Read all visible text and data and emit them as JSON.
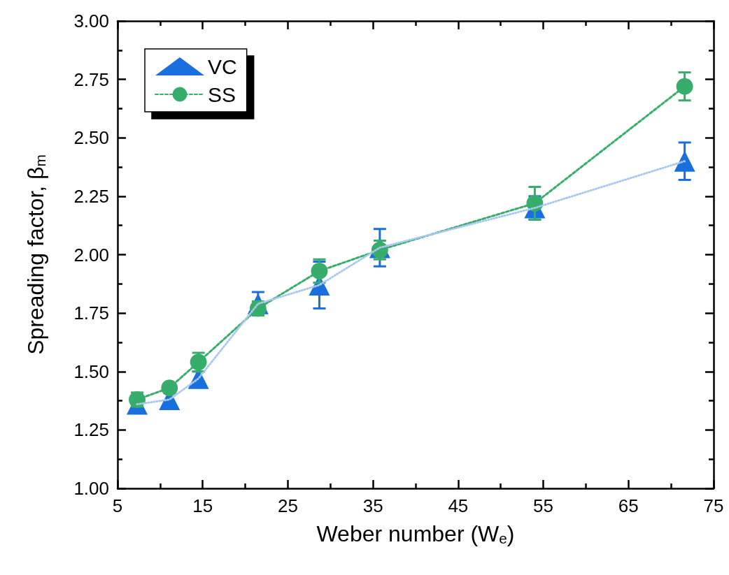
{
  "chart_data": {
    "type": "line",
    "xlabel": "Weber number (W$_{e}$)",
    "ylabel": "Spreading factor, β$_{m}$",
    "x": [
      7.3,
      11.1,
      14.5,
      21.5,
      28.7,
      35.8,
      54.0,
      71.6
    ],
    "series": [
      {
        "name": "VC",
        "color": "#1a6fdf",
        "marker": "triangle",
        "line_style": "dotted",
        "values": [
          1.36,
          1.38,
          1.47,
          1.79,
          1.87,
          2.03,
          2.2,
          2.4
        ],
        "errors": [
          0.02,
          0.03,
          0.03,
          0.05,
          0.1,
          0.08,
          0.05,
          0.08
        ]
      },
      {
        "name": "SS",
        "color": "#37ad6b",
        "marker": "circle",
        "line_style": "dashed",
        "values": [
          1.38,
          1.43,
          1.54,
          1.77,
          1.93,
          2.02,
          2.22,
          2.72
        ],
        "errors": [
          0.03,
          0.02,
          0.04,
          0.03,
          0.05,
          0.04,
          0.07,
          0.06
        ]
      }
    ],
    "xlim": [
      5,
      75
    ],
    "xticks": [
      5,
      15,
      25,
      35,
      45,
      55,
      65,
      75
    ],
    "ylim": [
      1,
      3
    ],
    "yticks": [
      {
        "value": 1,
        "label": "1.00"
      },
      1.25,
      {
        "value": 1.5,
        "label": "1.50"
      },
      1.75,
      {
        "value": 2,
        "label": "2.00"
      },
      2.25,
      {
        "value": 2.5,
        "label": "2.50"
      },
      2.75,
      {
        "value": 3,
        "label": "3.00"
      }
    ],
    "grid": false,
    "legend": "top left"
  }
}
